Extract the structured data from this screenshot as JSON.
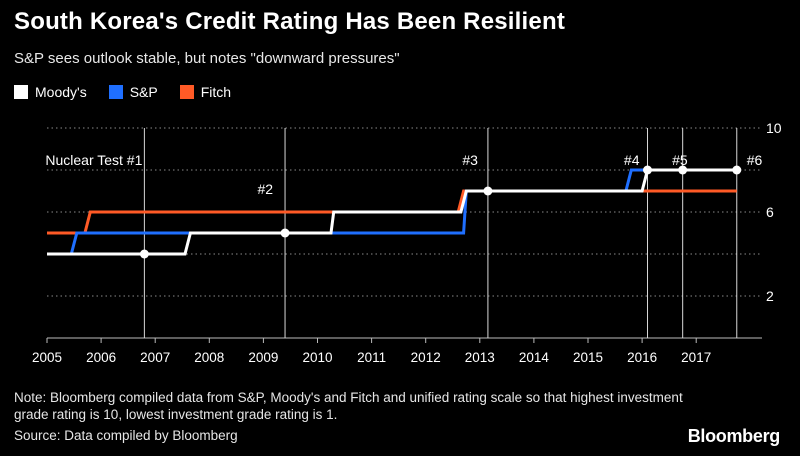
{
  "header": {
    "title": "South Korea's Credit Rating Has Been Resilient",
    "subtitle": "S&P sees outlook stable, but notes \"downward pressures\""
  },
  "legend": [
    {
      "label": "Moody's",
      "color": "#ffffff"
    },
    {
      "label": "S&P",
      "color": "#1f6fff"
    },
    {
      "label": "Fitch",
      "color": "#ff5a26"
    }
  ],
  "footer": {
    "note": "Note: Bloomberg compiled data from S&P, Moody's and Fitch and unified rating scale so that highest investment grade rating is 10, lowest investment grade rating is 1.",
    "source": "Source: Data compiled by Bloomberg",
    "brand": "Bloomberg"
  },
  "chart_data": {
    "type": "line",
    "title": "South Korea's Credit Rating Has Been Resilient",
    "xlim": [
      2005,
      2017.85
    ],
    "ylim": [
      0,
      10
    ],
    "x_ticks": [
      "2005",
      "2006",
      "2007",
      "2008",
      "2009",
      "2010",
      "2011",
      "2012",
      "2013",
      "2014",
      "2015",
      "2016",
      "2017"
    ],
    "y_ticks": [
      "2",
      "6",
      "10"
    ],
    "grid": "horizontal dotted",
    "legend_position": "top-left",
    "series": [
      {
        "name": "Fitch",
        "color": "#ff5a26",
        "points": [
          [
            2005.0,
            5
          ],
          [
            2005.7,
            5
          ],
          [
            2005.8,
            6
          ],
          [
            2012.6,
            6
          ],
          [
            2012.7,
            7
          ],
          [
            2017.75,
            7
          ]
        ]
      },
      {
        "name": "S&P",
        "color": "#1f6fff",
        "points": [
          [
            2005.0,
            4
          ],
          [
            2005.45,
            4
          ],
          [
            2005.55,
            5
          ],
          [
            2012.7,
            5
          ],
          [
            2012.75,
            7
          ],
          [
            2015.7,
            7
          ],
          [
            2015.8,
            8
          ],
          [
            2016.6,
            8
          ],
          [
            2016.7,
            8
          ],
          [
            2017.75,
            8
          ]
        ]
      },
      {
        "name": "Moody's",
        "color": "#ffffff",
        "points": [
          [
            2005.0,
            4
          ],
          [
            2007.55,
            4
          ],
          [
            2007.65,
            5
          ],
          [
            2010.25,
            5
          ],
          [
            2010.3,
            6
          ],
          [
            2012.65,
            6
          ],
          [
            2012.75,
            7
          ],
          [
            2016.0,
            7
          ],
          [
            2016.1,
            8
          ],
          [
            2017.75,
            8
          ]
        ]
      }
    ],
    "events": [
      {
        "label": "Nuclear Test #1",
        "x": 2006.8,
        "y": 4
      },
      {
        "label": "#2",
        "x": 2009.4,
        "y": 5
      },
      {
        "label": "#3",
        "x": 2013.15,
        "y": 7
      },
      {
        "label": "#4",
        "x": 2016.1,
        "y": 8
      },
      {
        "label": "#5",
        "x": 2016.75,
        "y": 8
      },
      {
        "label": "#6",
        "x": 2017.75,
        "y": 8
      }
    ]
  }
}
